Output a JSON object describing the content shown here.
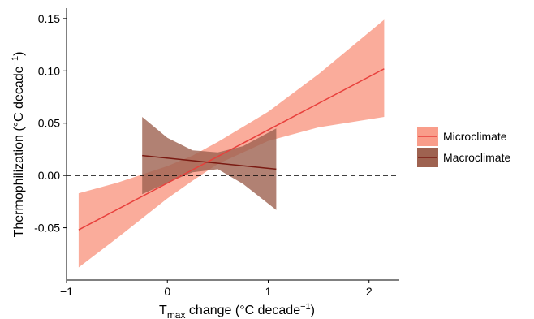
{
  "chart_data": {
    "type": "line",
    "title": "",
    "xlabel": {
      "prefix": "T",
      "subscript": "max",
      "text": " change (°C  decade",
      "superscript": "−1",
      "suffix": ")"
    },
    "ylabel": {
      "text": "Thermophilization (°C decade",
      "superscript": "−1",
      "suffix": ")"
    },
    "xlim": [
      -1.0,
      2.3
    ],
    "ylim": [
      -0.1,
      0.16
    ],
    "xticks": [
      -1,
      0,
      1,
      2
    ],
    "xtick_labels": [
      "−1",
      "0",
      "1",
      "2"
    ],
    "yticks": [
      -0.05,
      0.0,
      0.05,
      0.1,
      0.15
    ],
    "ytick_labels": [
      "-0.05",
      "0.00",
      "0.05",
      "0.10",
      "0.15"
    ],
    "grid": false,
    "reference_line": {
      "y": 0,
      "style": "dashed"
    },
    "legend": {
      "position": "right"
    },
    "series": [
      {
        "name": "Microclimate",
        "color": "#e8403c",
        "band_color": "#f99d8a",
        "x": [
          -0.88,
          2.15
        ],
        "fit": [
          -0.052,
          0.102
        ],
        "band": {
          "x": [
            -0.88,
            -0.5,
            0.0,
            0.25,
            0.5,
            1.0,
            1.5,
            2.15
          ],
          "lower": [
            -0.088,
            -0.06,
            -0.022,
            -0.005,
            0.011,
            0.033,
            0.046,
            0.056
          ],
          "upper": [
            -0.017,
            -0.007,
            0.009,
            0.019,
            0.032,
            0.061,
            0.097,
            0.149
          ]
        }
      },
      {
        "name": "Macroclimate",
        "color": "#7a1a12",
        "band_color": "#9e6250",
        "x": [
          -0.25,
          1.08
        ],
        "fit": [
          0.019,
          0.006
        ],
        "band": {
          "x": [
            -0.25,
            0.0,
            0.25,
            0.5,
            0.75,
            1.08
          ],
          "lower": [
            -0.018,
            -0.007,
            0.003,
            0.006,
            -0.008,
            -0.033
          ],
          "upper": [
            0.056,
            0.036,
            0.024,
            0.022,
            0.028,
            0.045
          ]
        }
      }
    ]
  }
}
